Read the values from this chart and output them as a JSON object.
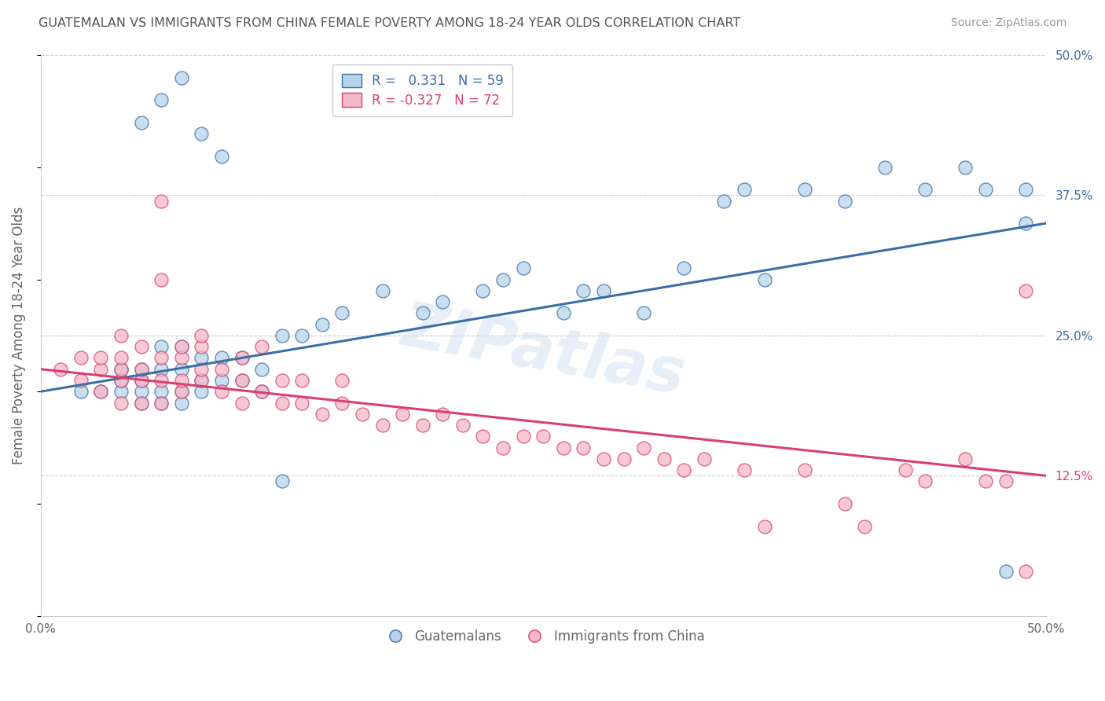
{
  "title": "GUATEMALAN VS IMMIGRANTS FROM CHINA FEMALE POVERTY AMONG 18-24 YEAR OLDS CORRELATION CHART",
  "source": "Source: ZipAtlas.com",
  "ylabel": "Female Poverty Among 18-24 Year Olds",
  "xlim": [
    0,
    0.5
  ],
  "ylim": [
    0,
    0.5
  ],
  "blue_R": 0.331,
  "blue_N": 59,
  "pink_R": -0.327,
  "pink_N": 72,
  "blue_color": "#b8d4ea",
  "pink_color": "#f5b8c8",
  "blue_line_color": "#3a6ea8",
  "pink_line_color": "#d84070",
  "watermark": "ZIPatlas",
  "background_color": "#ffffff",
  "grid_color": "#cccccc",
  "title_color": "#555555",
  "label_color": "#666666",
  "blue_scatter_x": [
    0.02,
    0.03,
    0.04,
    0.04,
    0.04,
    0.05,
    0.05,
    0.05,
    0.05,
    0.06,
    0.06,
    0.06,
    0.06,
    0.07,
    0.07,
    0.07,
    0.07,
    0.08,
    0.08,
    0.08,
    0.09,
    0.09,
    0.1,
    0.1,
    0.11,
    0.11,
    0.12,
    0.12,
    0.13,
    0.14,
    0.15,
    0.17,
    0.19,
    0.2,
    0.22,
    0.23,
    0.24,
    0.26,
    0.27,
    0.28,
    0.3,
    0.32,
    0.34,
    0.35,
    0.36,
    0.38,
    0.4,
    0.42,
    0.44,
    0.46,
    0.47,
    0.48,
    0.49,
    0.49,
    0.05,
    0.06,
    0.07,
    0.08,
    0.09
  ],
  "blue_scatter_y": [
    0.2,
    0.2,
    0.2,
    0.21,
    0.22,
    0.19,
    0.2,
    0.21,
    0.22,
    0.19,
    0.2,
    0.22,
    0.24,
    0.19,
    0.2,
    0.22,
    0.24,
    0.2,
    0.21,
    0.23,
    0.21,
    0.23,
    0.21,
    0.23,
    0.2,
    0.22,
    0.12,
    0.25,
    0.25,
    0.26,
    0.27,
    0.29,
    0.27,
    0.28,
    0.29,
    0.3,
    0.31,
    0.27,
    0.29,
    0.29,
    0.27,
    0.31,
    0.37,
    0.38,
    0.3,
    0.38,
    0.37,
    0.4,
    0.38,
    0.4,
    0.38,
    0.04,
    0.35,
    0.38,
    0.44,
    0.46,
    0.48,
    0.43,
    0.41
  ],
  "pink_scatter_x": [
    0.01,
    0.02,
    0.02,
    0.03,
    0.03,
    0.03,
    0.04,
    0.04,
    0.04,
    0.04,
    0.04,
    0.05,
    0.05,
    0.05,
    0.05,
    0.06,
    0.06,
    0.06,
    0.06,
    0.07,
    0.07,
    0.07,
    0.07,
    0.08,
    0.08,
    0.08,
    0.09,
    0.09,
    0.1,
    0.1,
    0.1,
    0.11,
    0.11,
    0.12,
    0.12,
    0.13,
    0.13,
    0.14,
    0.15,
    0.15,
    0.16,
    0.17,
    0.18,
    0.19,
    0.2,
    0.21,
    0.22,
    0.23,
    0.24,
    0.25,
    0.26,
    0.27,
    0.28,
    0.29,
    0.3,
    0.31,
    0.32,
    0.33,
    0.35,
    0.36,
    0.38,
    0.4,
    0.41,
    0.43,
    0.44,
    0.46,
    0.47,
    0.48,
    0.49,
    0.49,
    0.06,
    0.08
  ],
  "pink_scatter_y": [
    0.22,
    0.21,
    0.23,
    0.2,
    0.22,
    0.23,
    0.19,
    0.21,
    0.22,
    0.23,
    0.25,
    0.19,
    0.21,
    0.22,
    0.24,
    0.19,
    0.21,
    0.23,
    0.3,
    0.2,
    0.21,
    0.23,
    0.24,
    0.21,
    0.22,
    0.24,
    0.2,
    0.22,
    0.19,
    0.21,
    0.23,
    0.2,
    0.24,
    0.19,
    0.21,
    0.19,
    0.21,
    0.18,
    0.19,
    0.21,
    0.18,
    0.17,
    0.18,
    0.17,
    0.18,
    0.17,
    0.16,
    0.15,
    0.16,
    0.16,
    0.15,
    0.15,
    0.14,
    0.14,
    0.15,
    0.14,
    0.13,
    0.14,
    0.13,
    0.08,
    0.13,
    0.1,
    0.08,
    0.13,
    0.12,
    0.14,
    0.12,
    0.12,
    0.04,
    0.29,
    0.37,
    0.25
  ]
}
